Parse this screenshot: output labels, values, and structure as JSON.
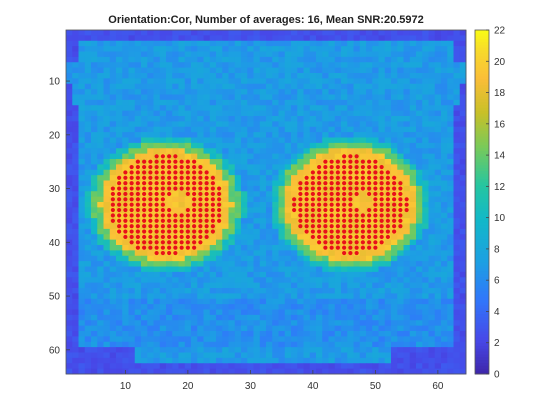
{
  "chart_data": {
    "type": "heatmap",
    "title": "Orientation:Cor, Number of averages: 16, Mean SNR:20.5972",
    "x_ticks": [
      "10",
      "20",
      "30",
      "40",
      "50",
      "60"
    ],
    "y_ticks": [
      "10",
      "20",
      "30",
      "40",
      "50",
      "60"
    ],
    "colorbar_ticks": [
      "0",
      "2",
      "4",
      "6",
      "8",
      "10",
      "12",
      "14",
      "16",
      "18",
      "20",
      "22"
    ],
    "xlim": [
      0.5,
      64.5
    ],
    "ylim": [
      0.5,
      64.5
    ],
    "clim": [
      0,
      22
    ],
    "grid_size": [
      64,
      64
    ],
    "colormap": "parula",
    "overlay_marker_color": "#e8101a",
    "regions": {
      "background_value": 7,
      "border_value": 2,
      "circles": [
        {
          "center": [
            16.5,
            33
          ],
          "radius": 10.5,
          "value": 19,
          "ring_value": 14
        },
        {
          "center": [
            46,
            33
          ],
          "radius": 10.5,
          "value": 19,
          "ring_value": 14
        }
      ]
    }
  }
}
